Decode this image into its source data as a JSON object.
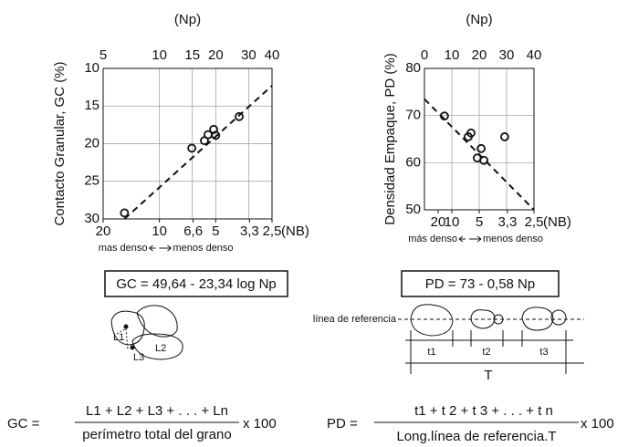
{
  "chart_data": [
    {
      "type": "scatter",
      "x_label": "(Np)",
      "y_label": "Contacto Granular, GC (%)",
      "xscale": "log",
      "xlim": [
        5,
        40
      ],
      "xticks": [
        5,
        10,
        15,
        20,
        30,
        40
      ],
      "ylim": [
        30,
        10
      ],
      "yticks": [
        10,
        15,
        20,
        25,
        30
      ],
      "grid": true,
      "x2_label": "(NB)",
      "x2ticks": [
        20,
        10,
        {
          "value": 6.6,
          "label": "6,6"
        },
        5,
        {
          "value": 3.3,
          "label": "3,3"
        },
        {
          "value": 2.5,
          "label": "2,5"
        }
      ],
      "direction_labels": [
        "mas denso",
        "menos denso"
      ],
      "equation": "GC = 49,64 - 23,34 log Np",
      "series": [
        {
          "style": "markers",
          "color": "#111",
          "x": [
            6.5,
            14.9,
            17.4,
            18.2,
            19.5,
            20.0,
            26.7
          ],
          "values": [
            29.2,
            20.6,
            19.6,
            18.8,
            18.1,
            18.9,
            16.4
          ]
        },
        {
          "style": "dashed",
          "color": "#111",
          "x": [
            6.5,
            40
          ],
          "values": [
            30,
            12.3
          ]
        }
      ]
    },
    {
      "type": "scatter",
      "x_label": "(Np)",
      "y_label": "Densidad Empaque, PD (%)",
      "xscale": "linear",
      "xlim": [
        0,
        40
      ],
      "xticks": [
        0,
        10,
        20,
        30,
        40
      ],
      "ylim": [
        50,
        80
      ],
      "yticks": [
        50,
        60,
        70,
        80
      ],
      "grid": true,
      "x2_label": "(NB)",
      "x2ticks": [
        20,
        10,
        5,
        {
          "value": 3.3,
          "label": "3,3"
        },
        {
          "value": 2.5,
          "label": "2,5"
        }
      ],
      "direction_labels": [
        "más denso",
        "menos denso"
      ],
      "equation": "PD =  73 - 0,58 Np",
      "series": [
        {
          "style": "markers",
          "color": "#111",
          "x": [
            7.3,
            16,
            17,
            20.7,
            19.3,
            21.7,
            29.3
          ],
          "values": [
            69.9,
            65.5,
            66.3,
            63,
            61,
            60.5,
            65.5
          ]
        },
        {
          "style": "dashed",
          "color": "#111",
          "x": [
            0,
            40
          ],
          "values": [
            73.5,
            50
          ]
        }
      ]
    }
  ],
  "grain_diagram": {
    "labels": [
      "L1",
      "L2",
      "L3"
    ]
  },
  "reference_diagram": {
    "label": "línea de referencia",
    "segments": [
      "t1",
      "t2",
      "t3"
    ],
    "total": "T"
  },
  "formulas": [
    {
      "lhs": "GC =",
      "numerator": "L1 + L2 + L3 + . . . + Ln",
      "denominator": "perímetro total del grano",
      "factor": "x 100"
    },
    {
      "lhs": "PD =",
      "numerator": "t1 + t 2 + t 3 + . . . + t n",
      "denominator": "Long.línea de referencia.T",
      "factor": "x 100"
    }
  ]
}
